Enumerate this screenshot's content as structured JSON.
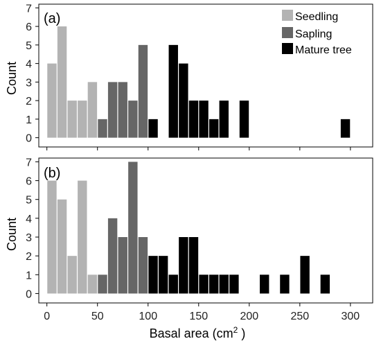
{
  "chart_data": {
    "type": "bar",
    "xlabel": "Basal area (cm",
    "xlabel_sup": "2",
    "xlabel_close": " )",
    "ylabel": "Count",
    "x_ticks": [
      0,
      50,
      100,
      150,
      200,
      250,
      300
    ],
    "x_range": [
      -8,
      322
    ],
    "bin_width": 10,
    "legend": [
      {
        "name": "Seedling",
        "color": "#b3b3b3"
      },
      {
        "name": "Sapling",
        "color": "#666666"
      },
      {
        "name": "Mature tree",
        "color": "#000000"
      }
    ],
    "panels": [
      {
        "label": "(a)",
        "y_ticks": [
          0,
          1,
          2,
          3,
          4,
          5,
          6,
          7
        ],
        "y_range": [
          -0.5,
          7.2
        ],
        "bars": [
          {
            "x": 5,
            "count": 4,
            "group": "Seedling"
          },
          {
            "x": 15,
            "count": 6,
            "group": "Seedling"
          },
          {
            "x": 25,
            "count": 2,
            "group": "Seedling"
          },
          {
            "x": 35,
            "count": 2,
            "group": "Seedling"
          },
          {
            "x": 45,
            "count": 3,
            "group": "Seedling"
          },
          {
            "x": 55,
            "count": 1,
            "group": "Sapling"
          },
          {
            "x": 65,
            "count": 3,
            "group": "Sapling"
          },
          {
            "x": 75,
            "count": 3,
            "group": "Sapling"
          },
          {
            "x": 85,
            "count": 2,
            "group": "Sapling"
          },
          {
            "x": 95,
            "count": 5,
            "group": "Sapling"
          },
          {
            "x": 105,
            "count": 1,
            "group": "Mature tree"
          },
          {
            "x": 125,
            "count": 5,
            "group": "Mature tree"
          },
          {
            "x": 135,
            "count": 4,
            "group": "Mature tree"
          },
          {
            "x": 145,
            "count": 2,
            "group": "Mature tree"
          },
          {
            "x": 155,
            "count": 2,
            "group": "Mature tree"
          },
          {
            "x": 165,
            "count": 1,
            "group": "Mature tree"
          },
          {
            "x": 175,
            "count": 2,
            "group": "Mature tree"
          },
          {
            "x": 195,
            "count": 2,
            "group": "Mature tree"
          },
          {
            "x": 295,
            "count": 1,
            "group": "Mature tree"
          }
        ]
      },
      {
        "label": "(b)",
        "y_ticks": [
          0,
          1,
          2,
          3,
          4,
          5,
          6,
          7
        ],
        "y_range": [
          -0.5,
          7.2
        ],
        "bars": [
          {
            "x": 5,
            "count": 6,
            "group": "Seedling"
          },
          {
            "x": 15,
            "count": 5,
            "group": "Seedling"
          },
          {
            "x": 25,
            "count": 2,
            "group": "Seedling"
          },
          {
            "x": 35,
            "count": 6,
            "group": "Seedling"
          },
          {
            "x": 45,
            "count": 1,
            "group": "Seedling"
          },
          {
            "x": 55,
            "count": 1,
            "group": "Sapling"
          },
          {
            "x": 65,
            "count": 4,
            "group": "Sapling"
          },
          {
            "x": 75,
            "count": 3,
            "group": "Sapling"
          },
          {
            "x": 85,
            "count": 7,
            "group": "Sapling"
          },
          {
            "x": 95,
            "count": 3,
            "group": "Sapling"
          },
          {
            "x": 105,
            "count": 2,
            "group": "Mature tree"
          },
          {
            "x": 115,
            "count": 2,
            "group": "Mature tree"
          },
          {
            "x": 125,
            "count": 1,
            "group": "Mature tree"
          },
          {
            "x": 135,
            "count": 3,
            "group": "Mature tree"
          },
          {
            "x": 145,
            "count": 3,
            "group": "Mature tree"
          },
          {
            "x": 155,
            "count": 1,
            "group": "Mature tree"
          },
          {
            "x": 165,
            "count": 1,
            "group": "Mature tree"
          },
          {
            "x": 175,
            "count": 1,
            "group": "Mature tree"
          },
          {
            "x": 185,
            "count": 1,
            "group": "Mature tree"
          },
          {
            "x": 215,
            "count": 1,
            "group": "Mature tree"
          },
          {
            "x": 235,
            "count": 1,
            "group": "Mature tree"
          },
          {
            "x": 255,
            "count": 2,
            "group": "Mature tree"
          },
          {
            "x": 275,
            "count": 1,
            "group": "Mature tree"
          }
        ]
      }
    ]
  }
}
